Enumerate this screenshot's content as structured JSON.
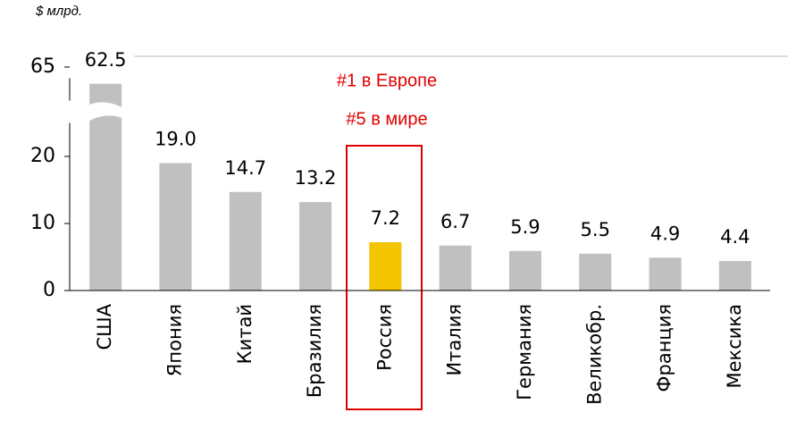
{
  "chart_data": {
    "type": "bar",
    "title": "$ млрд.",
    "annotations": [
      "#1 в Европе",
      "#5 в мире"
    ],
    "categories": [
      "США",
      "Япония",
      "Китай",
      "Бразилия",
      "Россия",
      "Италия",
      "Германия",
      "Великобр.",
      "Франция",
      "Мексика"
    ],
    "values": [
      62.5,
      19.0,
      14.7,
      13.2,
      7.2,
      6.7,
      5.9,
      5.5,
      4.9,
      4.4
    ],
    "value_labels": [
      "62.5",
      "19.0",
      "14.7",
      "13.2",
      "7.2",
      "6.7",
      "5.9",
      "5.5",
      "4.9",
      "4.4"
    ],
    "colors": [
      "#c0c0c0",
      "#c0c0c0",
      "#c0c0c0",
      "#c0c0c0",
      "#f5c400",
      "#c0c0c0",
      "#c0c0c0",
      "#c0c0c0",
      "#c0c0c0",
      "#c0c0c0"
    ],
    "ylim": [
      0,
      65
    ],
    "y_break": [
      25,
      60
    ],
    "yticks": [
      0,
      10,
      20,
      65
    ],
    "grid": false
  }
}
